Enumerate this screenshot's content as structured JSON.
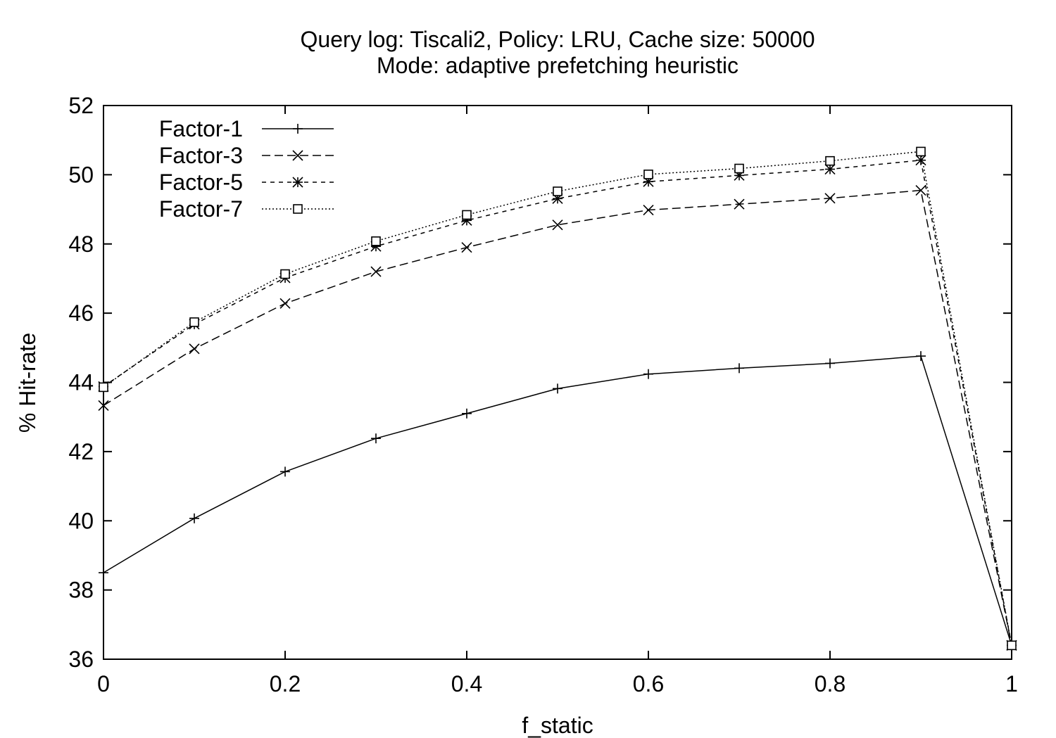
{
  "chart_data": {
    "type": "line",
    "title": "Query log: Tiscali2, Policy: LRU, Cache size: 50000",
    "subtitle": "Mode: adaptive prefetching heuristic",
    "xlabel": "f_static",
    "ylabel": "% Hit-rate",
    "xlim": [
      0,
      1
    ],
    "ylim": [
      36,
      52
    ],
    "xticks": [
      0,
      0.2,
      0.4,
      0.6,
      0.8,
      1
    ],
    "xtick_labels": [
      "0",
      "0.2",
      "0.4",
      "0.6",
      "0.8",
      "1"
    ],
    "yticks": [
      36,
      38,
      40,
      42,
      44,
      46,
      48,
      50,
      52
    ],
    "ytick_labels": [
      "36",
      "38",
      "40",
      "42",
      "44",
      "46",
      "48",
      "50",
      "52"
    ],
    "grid": false,
    "legend_position": "top-left",
    "x": [
      0,
      0.1,
      0.2,
      0.3,
      0.4,
      0.5,
      0.6,
      0.7,
      0.8,
      0.9,
      1
    ],
    "series": [
      {
        "name": "Factor-1",
        "marker": "plus",
        "dash": "solid",
        "values": [
          38.5,
          40.07,
          41.42,
          42.38,
          43.1,
          43.82,
          44.24,
          44.41,
          44.55,
          44.76,
          36.4
        ]
      },
      {
        "name": "Factor-3",
        "marker": "cross",
        "dash": "dashed",
        "values": [
          43.33,
          44.97,
          46.28,
          47.2,
          47.9,
          48.55,
          48.98,
          49.15,
          49.32,
          49.55,
          36.4
        ]
      },
      {
        "name": "Factor-5",
        "marker": "star",
        "dash": "short-dashed",
        "values": [
          43.88,
          45.68,
          47.02,
          47.93,
          48.68,
          49.31,
          49.8,
          49.98,
          50.16,
          50.42,
          36.4
        ]
      },
      {
        "name": "Factor-7",
        "marker": "square",
        "dash": "dotted",
        "values": [
          43.86,
          45.74,
          47.13,
          48.08,
          48.84,
          49.52,
          50.01,
          50.18,
          50.4,
          50.67,
          36.4
        ]
      }
    ]
  }
}
